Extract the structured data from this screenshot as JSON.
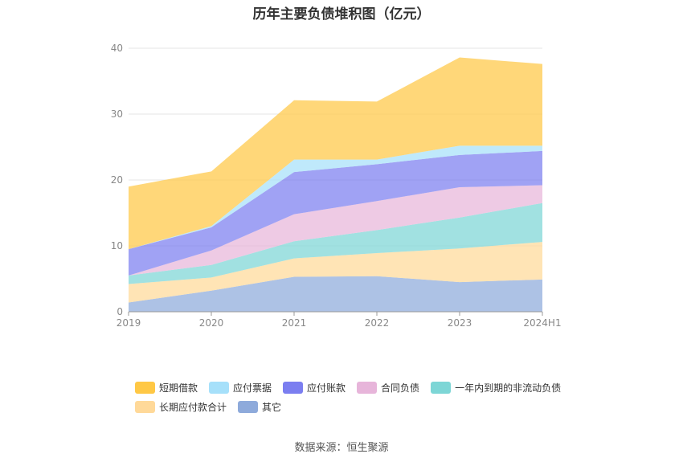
{
  "chart_data": {
    "type": "area",
    "stacked": true,
    "title": "历年主要负债堆积图（亿元）",
    "source": "数据来源：恒生聚源",
    "categories": [
      "2019",
      "2020",
      "2021",
      "2022",
      "2023",
      "2024H1"
    ],
    "ylim": [
      0,
      40
    ],
    "yticks": [
      "0",
      "10",
      "20",
      "30",
      "40"
    ],
    "grid": true,
    "legend_position": "bottom",
    "series": [
      {
        "name": "其它",
        "color": "#8eaadb",
        "values": [
          1.4,
          3.2,
          5.3,
          5.4,
          4.5,
          4.9
        ]
      },
      {
        "name": "长期应付款合计",
        "color": "#ffd999",
        "values": [
          2.8,
          2.0,
          2.8,
          3.5,
          5.1,
          5.7
        ]
      },
      {
        "name": "一年内到期的非流动负债",
        "color": "#7dd6d6",
        "values": [
          1.3,
          1.9,
          2.6,
          3.5,
          4.7,
          5.9
        ]
      },
      {
        "name": "合同负债",
        "color": "#e7b5da",
        "values": [
          0.0,
          2.2,
          4.1,
          4.4,
          4.6,
          2.7
        ]
      },
      {
        "name": "应付账款",
        "color": "#7b7ef0",
        "values": [
          4.0,
          3.5,
          6.4,
          5.6,
          4.9,
          5.2
        ]
      },
      {
        "name": "应付票据",
        "color": "#a6e0fa",
        "values": [
          0.0,
          0.2,
          1.9,
          0.7,
          1.4,
          0.8
        ]
      },
      {
        "name": "短期借款",
        "color": "#ffc845",
        "values": [
          9.5,
          8.3,
          9.0,
          8.8,
          13.4,
          12.4
        ]
      }
    ]
  }
}
